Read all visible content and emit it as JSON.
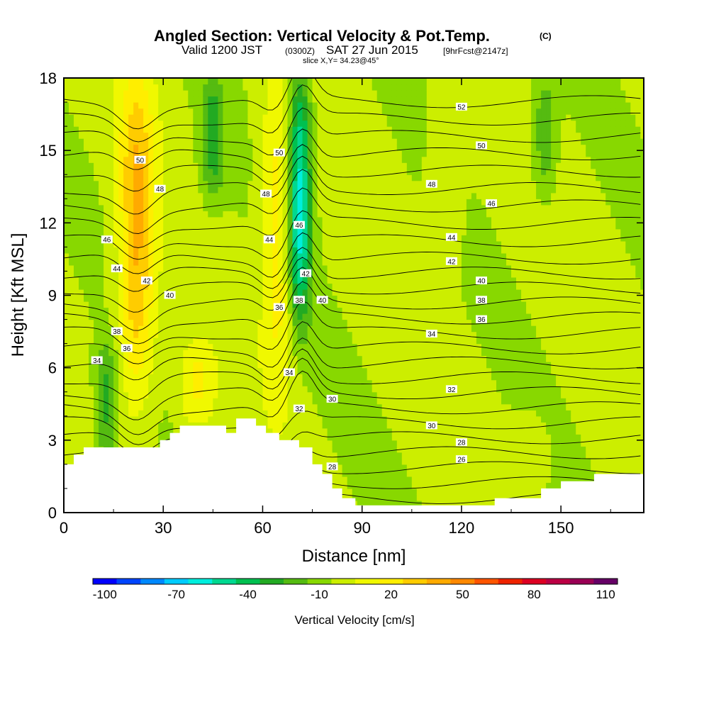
{
  "title": {
    "main": "Angled Section: Vertical Velocity & Pot.Temp.",
    "main_unit": "(C)",
    "valid_prefix": "Valid 1200 JST",
    "valid_utc": "(0300Z)",
    "valid_date": "SAT 27 Jun 2015",
    "forecast": "[9hrFcst@2147z]",
    "slice": "slice X,Y= 34.23@45°"
  },
  "chart_data": {
    "type": "heatmap",
    "xlabel": "Distance [nm]",
    "ylabel": "Height [Kft MSL]",
    "xlim": [
      0,
      175
    ],
    "ylim": [
      0,
      18
    ],
    "x_ticks": [
      0,
      30,
      60,
      90,
      120,
      150
    ],
    "y_ticks": [
      0,
      3,
      6,
      9,
      12,
      15,
      18
    ],
    "colorbar": {
      "label": "Vertical Velocity [cm/s]",
      "tick_labels": [
        "-100",
        "-70",
        "-40",
        "-10",
        "20",
        "50",
        "80",
        "110"
      ],
      "tick_values": [
        -100,
        -70,
        -40,
        -10,
        20,
        50,
        80,
        110
      ],
      "levels": [
        -105,
        -95,
        -85,
        -75,
        -65,
        -55,
        -45,
        -35,
        -25,
        -15,
        -5,
        5,
        15,
        25,
        35,
        45,
        55,
        65,
        75,
        85,
        95,
        105,
        115
      ],
      "colors": [
        "#0000ff",
        "#0044ff",
        "#0088ff",
        "#00ccff",
        "#00eedd",
        "#00d890",
        "#00c050",
        "#22aa22",
        "#55bb11",
        "#88d800",
        "#ccee00",
        "#f0f800",
        "#ffee00",
        "#ffcc00",
        "#ffaa00",
        "#ff8800",
        "#ff5500",
        "#ee2200",
        "#dd0022",
        "#bb0044",
        "#990055",
        "#660066"
      ]
    },
    "velocity_features": [
      {
        "name": "updraft",
        "x": 22,
        "y_min": 5,
        "y_max": 18,
        "peak": 40
      },
      {
        "name": "updraft",
        "x": 65,
        "y_min": 5,
        "y_max": 18,
        "peak": 25
      },
      {
        "name": "downdraft",
        "x": 71,
        "y_min": 8,
        "y_max": 18,
        "peak": -60
      },
      {
        "name": "downdraft",
        "x": 13,
        "y_min": 2,
        "y_max": 7,
        "peak": -25
      },
      {
        "name": "downdraft",
        "x": 45,
        "y_min": 13,
        "y_max": 18,
        "peak": -25
      },
      {
        "name": "updraft",
        "x": 40,
        "y_min": 3.5,
        "y_max": 7,
        "peak": 20
      },
      {
        "name": "updraft",
        "x": 140,
        "y_min": 1,
        "y_max": 4,
        "peak": 8
      },
      {
        "name": "downdraft",
        "x": 145,
        "y_min": 13,
        "y_max": 18,
        "peak": -20
      },
      {
        "name": "updraft",
        "x": 115,
        "y_min": 10,
        "y_max": 17,
        "peak": 7
      }
    ],
    "terrain": [
      [
        0,
        2
      ],
      [
        3,
        2
      ],
      [
        3,
        2.4
      ],
      [
        6,
        2.4
      ],
      [
        6,
        2.7
      ],
      [
        29,
        2.7
      ],
      [
        29,
        3.0
      ],
      [
        32,
        3.0
      ],
      [
        32,
        3.3
      ],
      [
        35,
        3.3
      ],
      [
        35,
        3.6
      ],
      [
        49,
        3.6
      ],
      [
        49,
        3.3
      ],
      [
        52,
        3.3
      ],
      [
        52,
        3.9
      ],
      [
        58,
        3.9
      ],
      [
        58,
        3.6
      ],
      [
        61,
        3.6
      ],
      [
        61,
        3.3
      ],
      [
        65,
        3.3
      ],
      [
        65,
        3.0
      ],
      [
        71,
        3.0
      ],
      [
        71,
        2.7
      ],
      [
        75,
        2.7
      ],
      [
        75,
        2.0
      ],
      [
        78,
        2.0
      ],
      [
        78,
        1.6
      ],
      [
        81,
        1.6
      ],
      [
        81,
        1.0
      ],
      [
        84,
        1.0
      ],
      [
        84,
        0.6
      ],
      [
        88,
        0.6
      ],
      [
        88,
        0.3
      ],
      [
        130,
        0.3
      ],
      [
        130,
        0.6
      ],
      [
        144,
        0.6
      ],
      [
        144,
        1.0
      ],
      [
        150,
        1.0
      ],
      [
        150,
        1.3
      ],
      [
        160,
        1.3
      ],
      [
        160,
        1.6
      ],
      [
        175,
        1.6
      ]
    ],
    "theta_contour_labels": [
      {
        "text": "52",
        "x": 120,
        "y": 16.8
      },
      {
        "text": "50",
        "x": 23,
        "y": 14.6
      },
      {
        "text": "50",
        "x": 65,
        "y": 14.9
      },
      {
        "text": "50",
        "x": 126,
        "y": 15.2
      },
      {
        "text": "48",
        "x": 29,
        "y": 13.4
      },
      {
        "text": "48",
        "x": 61,
        "y": 13.2
      },
      {
        "text": "48",
        "x": 111,
        "y": 13.6
      },
      {
        "text": "46",
        "x": 13,
        "y": 11.3
      },
      {
        "text": "46",
        "x": 71,
        "y": 11.9
      },
      {
        "text": "46",
        "x": 129,
        "y": 12.8
      },
      {
        "text": "44",
        "x": 16,
        "y": 10.1
      },
      {
        "text": "44",
        "x": 62,
        "y": 11.3
      },
      {
        "text": "44",
        "x": 117,
        "y": 11.4
      },
      {
        "text": "42",
        "x": 25,
        "y": 9.6
      },
      {
        "text": "42",
        "x": 73,
        "y": 9.9
      },
      {
        "text": "42",
        "x": 117,
        "y": 10.4
      },
      {
        "text": "40",
        "x": 32,
        "y": 9.0
      },
      {
        "text": "40",
        "x": 78,
        "y": 8.8
      },
      {
        "text": "40",
        "x": 126,
        "y": 9.6
      },
      {
        "text": "38",
        "x": 71,
        "y": 8.8
      },
      {
        "text": "38",
        "x": 126,
        "y": 8.8
      },
      {
        "text": "38",
        "x": 16,
        "y": 7.5
      },
      {
        "text": "36",
        "x": 65,
        "y": 8.5
      },
      {
        "text": "36",
        "x": 126,
        "y": 8.0
      },
      {
        "text": "36",
        "x": 19,
        "y": 6.8
      },
      {
        "text": "34",
        "x": 10,
        "y": 6.3
      },
      {
        "text": "34",
        "x": 111,
        "y": 7.4
      },
      {
        "text": "34",
        "x": 68,
        "y": 5.8
      },
      {
        "text": "32",
        "x": 71,
        "y": 4.3
      },
      {
        "text": "32",
        "x": 117,
        "y": 5.1
      },
      {
        "text": "30",
        "x": 81,
        "y": 4.7
      },
      {
        "text": "30",
        "x": 111,
        "y": 3.6
      },
      {
        "text": "28",
        "x": 81,
        "y": 1.9
      },
      {
        "text": "28",
        "x": 120,
        "y": 2.9
      },
      {
        "text": "26",
        "x": 120,
        "y": 2.2
      }
    ]
  }
}
